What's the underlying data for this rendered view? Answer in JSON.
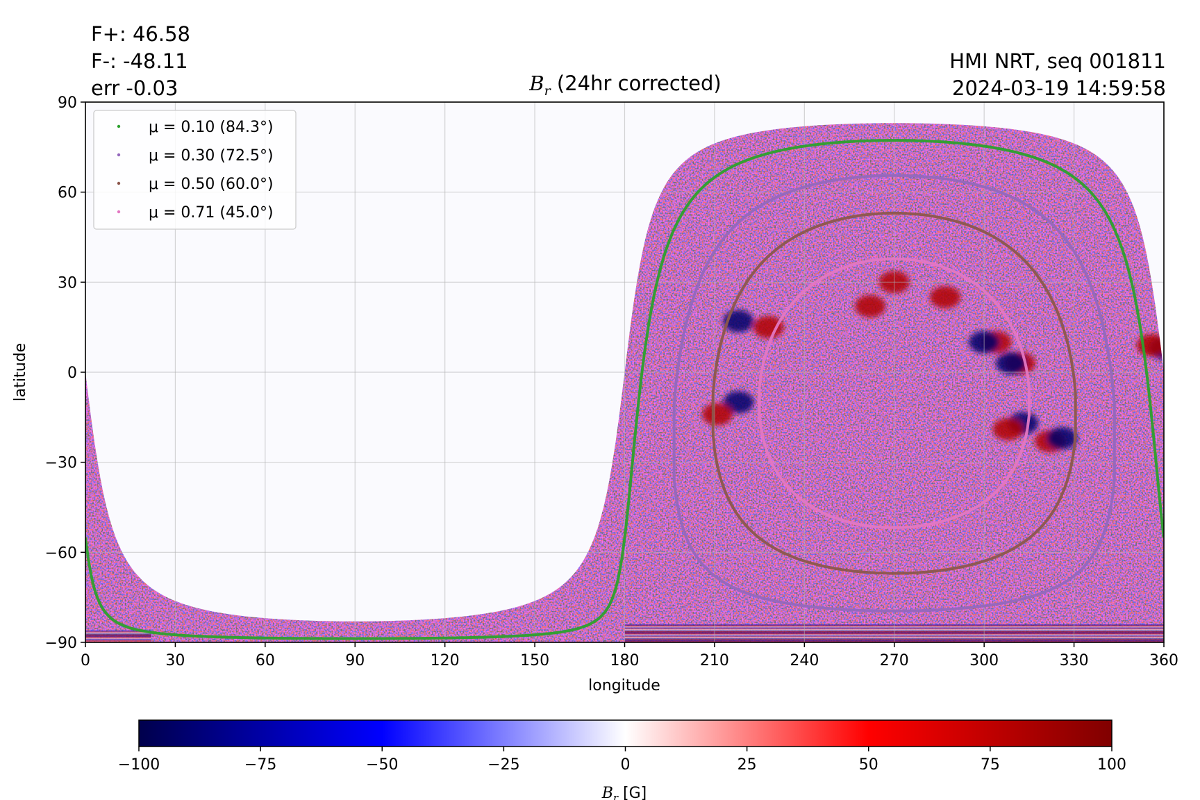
{
  "header": {
    "f_plus": "F+: 46.58",
    "f_minus": "F-: -48.11",
    "err": "err -0.03",
    "source": "HMI NRT, seq 001811",
    "timestamp": "2024-03-19 14:59:58"
  },
  "chart_data": {
    "type": "heatmap",
    "title": "B_r (24hr corrected)",
    "title_symbol": "B",
    "title_subscript": "r",
    "title_rest": " (24hr corrected)",
    "xlabel": "longitude",
    "ylabel": "latitude",
    "xlim": [
      0,
      360
    ],
    "ylim": [
      -90,
      90
    ],
    "xticks": [
      0,
      30,
      60,
      90,
      120,
      150,
      180,
      210,
      240,
      270,
      300,
      330,
      360
    ],
    "xtick_labels": [
      "0",
      "30",
      "60",
      "90",
      "120",
      "150",
      "180",
      "210",
      "240",
      "270",
      "300",
      "330",
      "360"
    ],
    "yticks": [
      90,
      60,
      30,
      0,
      -30,
      -60,
      -90
    ],
    "ytick_labels": [
      "90",
      "60",
      "30",
      "0",
      "−30",
      "−60",
      "−90"
    ],
    "grid": true,
    "legend_location": "upper-left",
    "disk_center": {
      "lon": 270,
      "lat": -7
    },
    "legend": [
      {
        "label": "μ = 0.10 (84.3°)",
        "mu": 0.1,
        "color": "#2ca02c"
      },
      {
        "label": "μ = 0.30 (72.5°)",
        "mu": 0.3,
        "color": "#9467bd"
      },
      {
        "label": "μ = 0.50 (60.0°)",
        "mu": 0.5,
        "color": "#8c564b"
      },
      {
        "label": "μ = 0.71 (45.0°)",
        "mu": 0.71,
        "color": "#e377c2"
      }
    ],
    "colorbar": {
      "label": "B_r [G]",
      "label_symbol": "B",
      "label_subscript": "r",
      "label_unit": " [G]",
      "range": [
        -100,
        100
      ],
      "ticks": [
        -100,
        -75,
        -50,
        -25,
        0,
        25,
        50,
        75,
        100
      ],
      "tick_labels": [
        "−100",
        "−75",
        "−50",
        "−25",
        "0",
        "25",
        "50",
        "75",
        "100"
      ],
      "colormap": "seismic",
      "colors": [
        "#00004c",
        "#0000ff",
        "#ffffff",
        "#ff0000",
        "#800000"
      ]
    },
    "active_regions": [
      {
        "lon": 218,
        "lat": 17,
        "polarity": "negative"
      },
      {
        "lon": 228,
        "lat": 15,
        "polarity": "positive"
      },
      {
        "lon": 218,
        "lat": -10,
        "polarity": "negative"
      },
      {
        "lon": 211,
        "lat": -14,
        "polarity": "positive"
      },
      {
        "lon": 313,
        "lat": -17,
        "polarity": "negative"
      },
      {
        "lon": 308,
        "lat": -19,
        "polarity": "positive"
      },
      {
        "lon": 322,
        "lat": -23,
        "polarity": "positive"
      },
      {
        "lon": 326,
        "lat": -22,
        "polarity": "negative"
      },
      {
        "lon": 304,
        "lat": 10,
        "polarity": "positive"
      },
      {
        "lon": 300,
        "lat": 10,
        "polarity": "negative"
      },
      {
        "lon": 312,
        "lat": 3,
        "polarity": "positive"
      },
      {
        "lon": 309,
        "lat": 3,
        "polarity": "negative"
      },
      {
        "lon": 360,
        "lat": 8,
        "polarity": "negative"
      },
      {
        "lon": 356,
        "lat": 9,
        "polarity": "positive"
      },
      {
        "lon": 270,
        "lat": 30,
        "polarity": "positive"
      },
      {
        "lon": 287,
        "lat": 25,
        "polarity": "positive"
      },
      {
        "lon": 262,
        "lat": 22,
        "polarity": "positive"
      }
    ]
  }
}
